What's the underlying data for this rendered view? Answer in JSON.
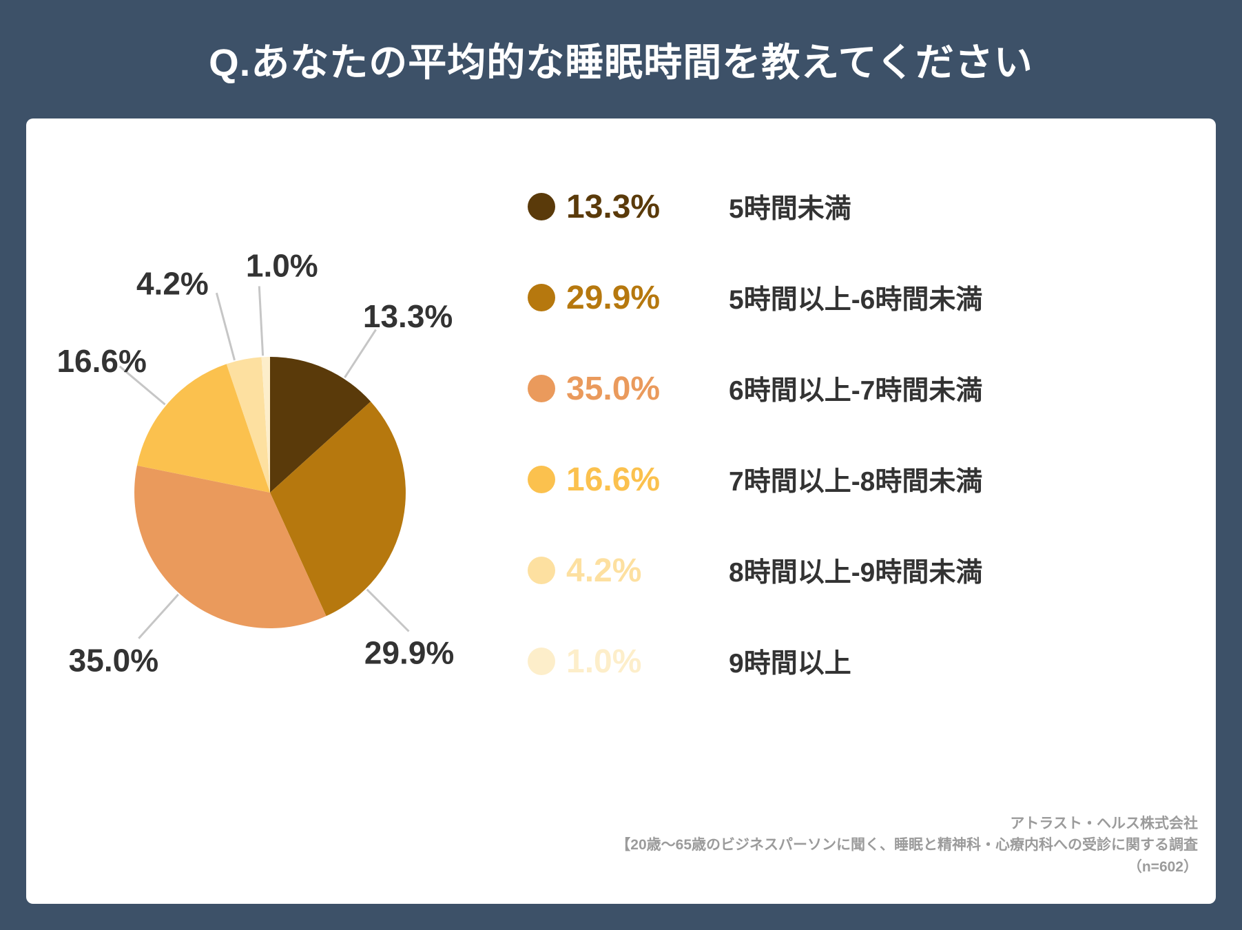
{
  "chart_data": {
    "type": "pie",
    "title": "Q.あなたの平均的な睡眠時間を教えてください",
    "categories": [
      "5時間未満",
      "5時間以上-6時間未満",
      "6時間以上-7時間未満",
      "7時間以上-8時間未満",
      "8時間以上-9時間未満",
      "9時間以上"
    ],
    "values": [
      13.3,
      29.9,
      35.0,
      16.6,
      4.2,
      1.0
    ],
    "value_labels": [
      "13.3%",
      "29.9%",
      "35.0%",
      "16.6%",
      "4.2%",
      "1.0%"
    ],
    "colors": [
      "#5a3a0a",
      "#b6780e",
      "#ea9a5c",
      "#fbc14e",
      "#fde0a0",
      "#fdeeca"
    ],
    "start_angle_deg": 0,
    "direction": "clockwise",
    "legend_position": "right",
    "total": 100.0
  },
  "footer": {
    "lines": [
      "アトラスト・ヘルス株式会社",
      "【20歳～65歳のビジネスパーソンに聞く、睡眠と精神科・心療内科への受診に関する調査",
      "（n=602）"
    ]
  },
  "palette": {
    "background": "#3d5168",
    "card": "#ffffff",
    "title_text": "#ffffff",
    "label_text": "#333333",
    "leader_line": "#c6c6c6",
    "footer_text": "#9b9b9b"
  }
}
